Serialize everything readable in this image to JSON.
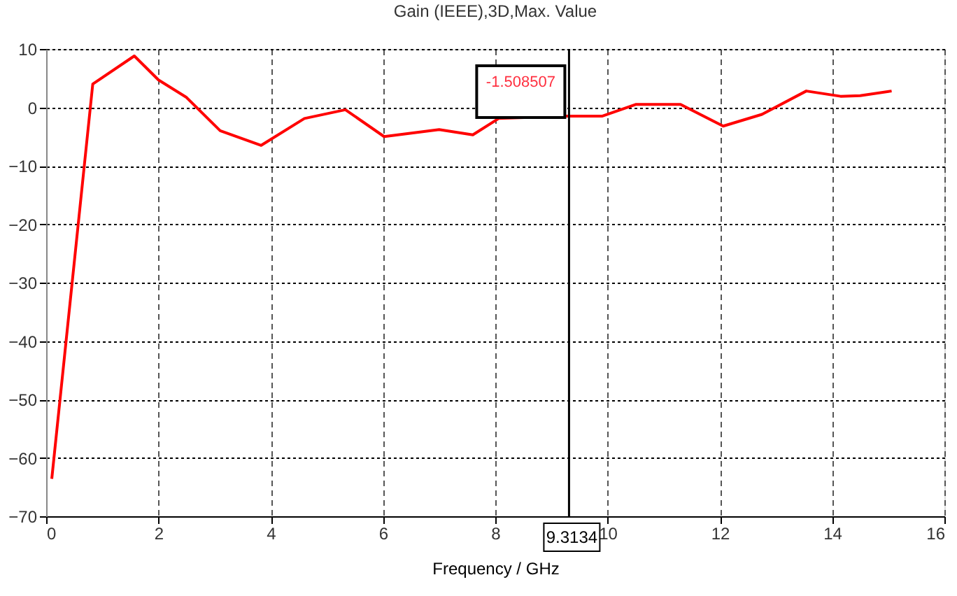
{
  "chart_data": {
    "type": "line",
    "title": "Gain (IEEE),3D,Max. Value",
    "xlabel": "Frequency / GHz",
    "x": [
      0.1,
      0.83,
      1.57,
      2.0,
      2.5,
      3.1,
      3.83,
      4.6,
      5.33,
      6.02,
      7.0,
      7.6,
      8.06,
      9.19,
      9.9,
      10.5,
      11.3,
      12.06,
      12.75,
      13.54,
      14.15,
      14.5,
      15.06
    ],
    "series": [
      {
        "color": "#ff0000",
        "values": [
          -63.6,
          4,
          8.8,
          4.7,
          1.7,
          -4,
          -6.5,
          -1.9,
          -0.4,
          -5,
          -3.8,
          -4.7,
          -1.9,
          -1.5,
          -1.5,
          0.5,
          0.5,
          -3.2,
          -1.2,
          2.8,
          1.9,
          2,
          2.8
        ]
      }
    ],
    "xlim": [
      0,
      16
    ],
    "xticks": [
      0,
      2,
      4,
      6,
      8,
      10,
      12,
      14,
      16
    ],
    "ylim": [
      -70,
      10
    ],
    "yticks": [
      -70,
      -60,
      -50,
      -40,
      -30,
      -20,
      -10,
      0,
      10
    ],
    "grid": true,
    "marker": "none",
    "line_style": "solid",
    "ref_lines": [
      {
        "axis": "x",
        "value": 9.3134,
        "label": "9.3134",
        "color": "#000000"
      }
    ],
    "annotations": [
      {
        "text": "-1.508507",
        "x": 9.3134,
        "y": -1.508507
      }
    ]
  }
}
